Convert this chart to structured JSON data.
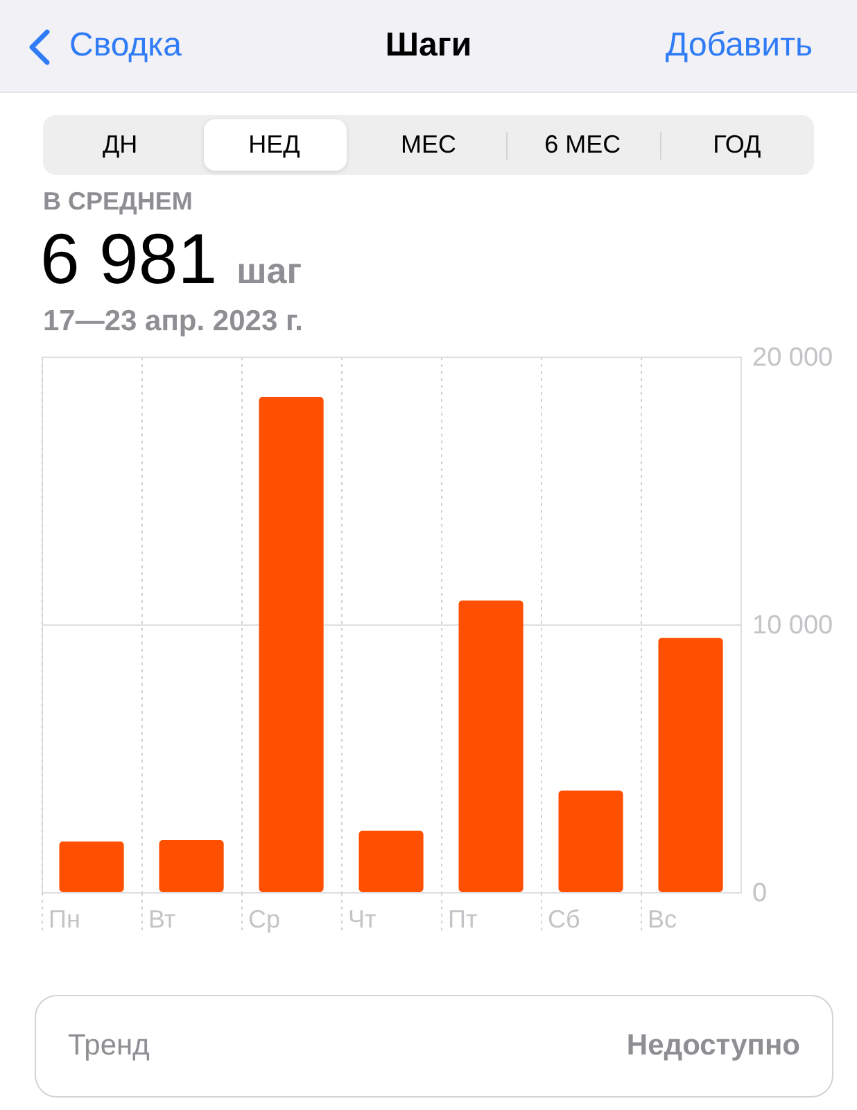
{
  "chart_data": {
    "type": "bar",
    "title": "Шаги",
    "subtitle": "17—23 апр. 2023 г.",
    "annotations": [
      "Сводка",
      "Добавить",
      "ДН",
      "НЕД",
      "МЕС",
      "6 МЕС",
      "ГОД",
      "В СРЕДНЕМ",
      "6 981",
      "шаг",
      "Тренд",
      "Недоступно"
    ],
    "categories": [
      "Пн",
      "Вт",
      "Ср",
      "Чт",
      "Пт",
      "Сб",
      "Вс"
    ],
    "values": [
      1900,
      1950,
      18500,
      2300,
      10900,
      3800,
      9500
    ],
    "color": "#ff4f00",
    "ylim": [
      0,
      20000
    ],
    "yticks": [
      0,
      {
        "value": 10000,
        "label": "10 000"
      },
      {
        "value": 20000,
        "label": "20 000"
      }
    ],
    "grid": true
  }
}
